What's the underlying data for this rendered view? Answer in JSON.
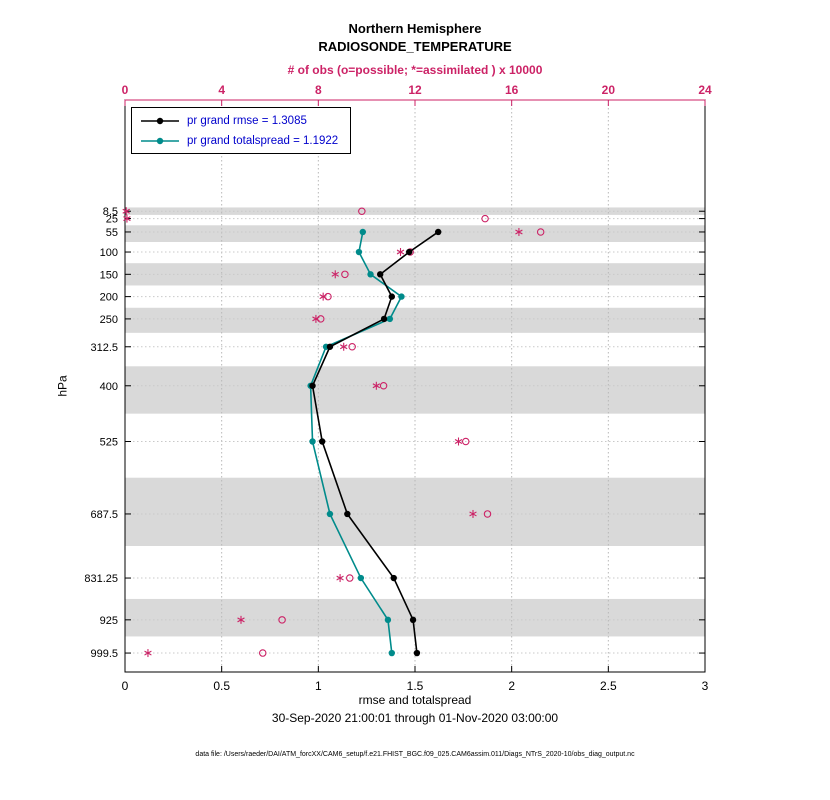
{
  "chart_data": {
    "type": "line",
    "title": "Northern Hemisphere",
    "subtitle": "RADIOSONDE_TEMPERATURE",
    "timestamp": "30-Sep-2020 21:00:01 through 01-Nov-2020 03:00:00",
    "footer": "data file: /Users/raeder/DAI/ATM_forcXX/CAM6_setup/f.e21.FHIST_BGC.f09_025.CAM6assim.011/Diags_NTrS_2020-10/obs_diag_output.nc",
    "band_color": "#d9d9d9",
    "legend_text_color": "#0000cc",
    "layout": {
      "grid": true,
      "legend_position": "top-left",
      "shaded_bands": "alternate pressure layers"
    },
    "top_axis": {
      "label": "# of obs (o=possible; *=assimilated ) x 10000",
      "ticks": [
        0,
        4,
        8,
        12,
        16,
        20,
        24
      ],
      "range": [
        0,
        24
      ],
      "color": "#cc2266"
    },
    "bottom_axis": {
      "label": "rmse and totalspread",
      "ticks": [
        0,
        0.5,
        1,
        1.5,
        2,
        2.5,
        3
      ],
      "range": [
        0,
        3
      ]
    },
    "y_axis": {
      "label": "hPa",
      "unit": "hPa",
      "ticks": [
        8.5,
        25,
        55,
        100,
        150,
        200,
        250,
        312.5,
        400,
        525,
        687.5,
        831.25,
        925,
        999.5
      ],
      "direction": "pressure-increasing-downward"
    },
    "series": [
      {
        "id": "rmse",
        "name": "pr grand rmse = 1.3085",
        "color": "#000000",
        "summary_value": 1.3085,
        "levels": [
          55,
          100,
          150,
          200,
          250,
          312.5,
          400,
          525,
          687.5,
          831.25,
          925,
          999.5
        ],
        "values": [
          1.62,
          1.47,
          1.32,
          1.38,
          1.34,
          1.06,
          0.97,
          1.02,
          1.15,
          1.39,
          1.49,
          1.51
        ]
      },
      {
        "id": "totalspread",
        "name": "pr grand totalspread = 1.1922",
        "color": "#008b8b",
        "summary_value": 1.1922,
        "levels": [
          55,
          100,
          150,
          200,
          250,
          312.5,
          400,
          525,
          687.5,
          831.25,
          925,
          999.5
        ],
        "values": [
          1.23,
          1.21,
          1.27,
          1.43,
          1.37,
          1.04,
          0.96,
          0.97,
          1.06,
          1.22,
          1.36,
          1.38
        ]
      }
    ],
    "obs_counts": {
      "units": "x 10000",
      "levels": [
        8.5,
        25,
        55,
        100,
        150,
        200,
        250,
        312.5,
        400,
        525,
        687.5,
        831.25,
        925,
        999.5
      ],
      "possible": [
        9.8,
        14.9,
        17.2,
        11.8,
        9.1,
        8.4,
        8.1,
        9.4,
        10.7,
        14.1,
        15.0,
        9.3,
        6.5,
        5.7
      ],
      "assimilated": [
        0.05,
        0.08,
        16.3,
        11.4,
        8.7,
        8.2,
        7.9,
        9.05,
        10.4,
        13.8,
        14.4,
        8.9,
        4.8,
        0.95
      ]
    }
  }
}
